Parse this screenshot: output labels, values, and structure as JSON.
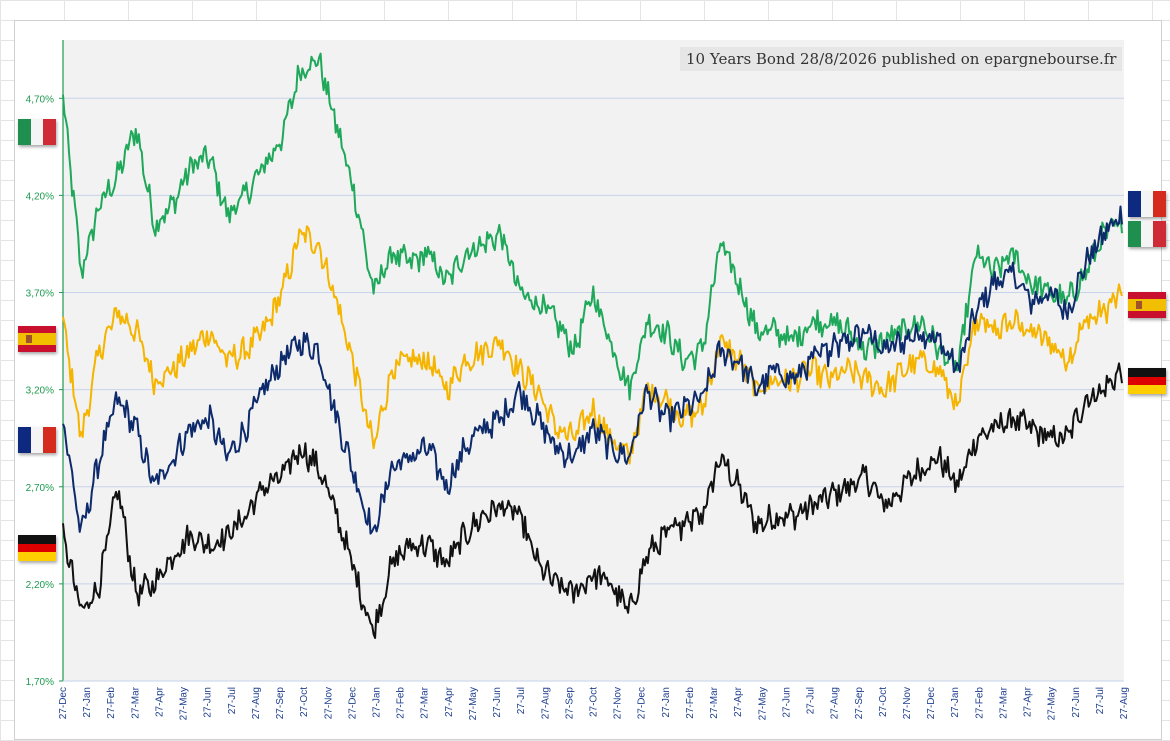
{
  "chart_data": {
    "type": "line",
    "title": "10 Years Bond 28/8/2026 published on epargnebourse.fr",
    "xlabel": "",
    "ylabel": "",
    "ylim": [
      1.7,
      5.0
    ],
    "y_ticks": [
      1.7,
      2.2,
      2.7,
      3.2,
      3.7,
      4.2,
      4.7
    ],
    "y_tick_labels": [
      "1,70%",
      "2,20%",
      "2,70%",
      "3,20%",
      "3,70%",
      "4,20%",
      "4,70%"
    ],
    "grid": true,
    "legend": "flags at left and right edges",
    "x_tick_labels": [
      "27-Dec",
      "27-Jan",
      "27-Feb",
      "27-Mar",
      "27-Apr",
      "27-May",
      "27-Jun",
      "27-Jul",
      "27-Aug",
      "27-Sep",
      "27-Oct",
      "27-Nov",
      "27-Dec",
      "27-Jan",
      "27-Feb",
      "27-Mar",
      "27-Apr",
      "27-May",
      "27-Jun",
      "27-Jul",
      "27-Aug",
      "27-Sep",
      "27-Oct",
      "27-Nov",
      "27-Dec",
      "27-Jan",
      "27-Feb",
      "27-Mar",
      "27-Apr",
      "27-May",
      "27-Jun",
      "27-Jul",
      "27-Aug",
      "27-Sep",
      "27-Oct",
      "27-Nov",
      "27-Dec",
      "27-Jan",
      "27-Feb",
      "27-Mar",
      "27-Apr",
      "27-May",
      "27-Jun",
      "27-Jul",
      "27-Aug"
    ],
    "series": [
      {
        "color": "#1fa85a",
        "flag": "italy",
        "values": [
          4.7,
          3.8,
          4.15,
          4.3,
          4.55,
          4.05,
          4.15,
          4.35,
          4.4,
          4.1,
          4.2,
          4.35,
          4.5,
          4.85,
          4.9,
          4.55,
          4.2,
          3.7,
          3.9,
          3.85,
          3.9,
          3.75,
          3.9,
          3.95,
          4.0,
          3.7,
          3.65,
          3.55,
          3.4,
          3.7,
          3.45,
          3.2,
          3.55,
          3.5,
          3.35,
          3.4,
          3.95,
          3.75,
          3.5,
          3.5,
          3.45,
          3.55,
          3.55,
          3.5,
          3.4,
          3.45,
          3.5,
          3.55,
          3.4,
          3.3,
          3.9,
          3.8,
          3.9,
          3.75,
          3.7,
          3.65,
          3.8,
          4.0,
          4.05
        ]
      },
      {
        "color": "#f5b400",
        "flag": "spain",
        "values": [
          3.55,
          2.95,
          3.4,
          3.6,
          3.5,
          3.25,
          3.3,
          3.4,
          3.5,
          3.35,
          3.4,
          3.5,
          3.7,
          4.0,
          3.95,
          3.65,
          3.3,
          2.9,
          3.3,
          3.35,
          3.35,
          3.2,
          3.35,
          3.4,
          3.45,
          3.3,
          3.2,
          3.0,
          2.95,
          3.1,
          2.95,
          2.85,
          3.2,
          3.15,
          3.05,
          3.1,
          3.45,
          3.35,
          3.2,
          3.25,
          3.25,
          3.3,
          3.25,
          3.3,
          3.25,
          3.2,
          3.3,
          3.35,
          3.3,
          3.1,
          3.55,
          3.5,
          3.55,
          3.5,
          3.45,
          3.35,
          3.55,
          3.6,
          3.7
        ]
      },
      {
        "color": "#0d2a6b",
        "flag": "france",
        "values": [
          3.05,
          2.45,
          2.85,
          3.15,
          3.0,
          2.7,
          2.85,
          3.0,
          3.05,
          2.85,
          3.0,
          3.2,
          3.35,
          3.45,
          3.4,
          3.05,
          2.75,
          2.45,
          2.8,
          2.85,
          2.9,
          2.7,
          2.9,
          3.0,
          3.05,
          3.2,
          3.05,
          2.9,
          2.85,
          3.0,
          2.9,
          2.85,
          3.2,
          3.05,
          3.1,
          3.15,
          3.4,
          3.35,
          3.2,
          3.3,
          3.25,
          3.35,
          3.4,
          3.45,
          3.5,
          3.4,
          3.45,
          3.5,
          3.45,
          3.3,
          3.6,
          3.75,
          3.8,
          3.65,
          3.7,
          3.6,
          3.85,
          4.0,
          4.1
        ]
      },
      {
        "color": "#111111",
        "flag": "germany",
        "values": [
          2.45,
          2.05,
          2.2,
          2.7,
          2.15,
          2.2,
          2.35,
          2.45,
          2.4,
          2.45,
          2.55,
          2.7,
          2.75,
          2.9,
          2.8,
          2.55,
          2.25,
          1.95,
          2.3,
          2.4,
          2.4,
          2.3,
          2.45,
          2.55,
          2.6,
          2.55,
          2.3,
          2.2,
          2.15,
          2.25,
          2.2,
          2.05,
          2.35,
          2.45,
          2.5,
          2.55,
          2.85,
          2.7,
          2.5,
          2.55,
          2.55,
          2.6,
          2.65,
          2.7,
          2.75,
          2.6,
          2.7,
          2.8,
          2.85,
          2.7,
          2.95,
          3.0,
          3.05,
          3.0,
          2.95,
          2.95,
          3.15,
          3.2,
          3.3
        ]
      }
    ]
  }
}
